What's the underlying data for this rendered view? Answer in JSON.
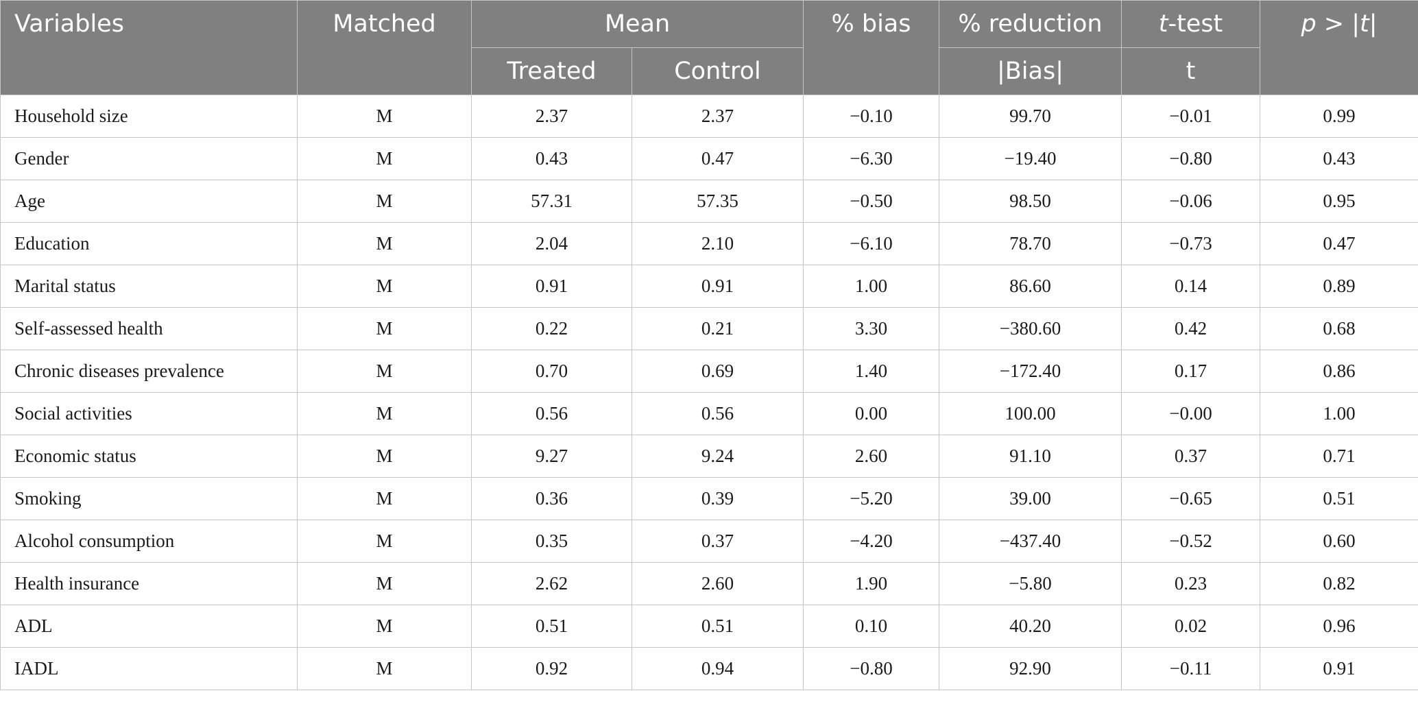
{
  "header": {
    "variables": "Variables",
    "matched": "Matched",
    "mean": "Mean",
    "treated": "Treated",
    "control": "Control",
    "bias": "% bias",
    "reduction": "% reduction",
    "abs_bias": "|Bias|",
    "ttest_t": "t",
    "ttest_rest": "-test",
    "t": "t",
    "p_p": "p",
    "p_mid": " > |",
    "p_t": "t",
    "p_end": "|"
  },
  "rows": [
    {
      "variable": "Household size",
      "matched": "M",
      "treated": "2.37",
      "control": "2.37",
      "bias": "−0.10",
      "reduction": "99.70",
      "t": "−0.01",
      "p": "0.99"
    },
    {
      "variable": "Gender",
      "matched": "M",
      "treated": "0.43",
      "control": "0.47",
      "bias": "−6.30",
      "reduction": "−19.40",
      "t": "−0.80",
      "p": "0.43"
    },
    {
      "variable": "Age",
      "matched": "M",
      "treated": "57.31",
      "control": "57.35",
      "bias": "−0.50",
      "reduction": "98.50",
      "t": "−0.06",
      "p": "0.95"
    },
    {
      "variable": "Education",
      "matched": "M",
      "treated": "2.04",
      "control": "2.10",
      "bias": "−6.10",
      "reduction": "78.70",
      "t": "−0.73",
      "p": "0.47"
    },
    {
      "variable": "Marital status",
      "matched": "M",
      "treated": "0.91",
      "control": "0.91",
      "bias": "1.00",
      "reduction": "86.60",
      "t": "0.14",
      "p": "0.89"
    },
    {
      "variable": "Self-assessed health",
      "matched": "M",
      "treated": "0.22",
      "control": "0.21",
      "bias": "3.30",
      "reduction": "−380.60",
      "t": "0.42",
      "p": "0.68"
    },
    {
      "variable": "Chronic diseases prevalence",
      "matched": "M",
      "treated": "0.70",
      "control": "0.69",
      "bias": "1.40",
      "reduction": "−172.40",
      "t": "0.17",
      "p": "0.86"
    },
    {
      "variable": "Social activities",
      "matched": "M",
      "treated": "0.56",
      "control": "0.56",
      "bias": "0.00",
      "reduction": "100.00",
      "t": "−0.00",
      "p": "1.00"
    },
    {
      "variable": "Economic status",
      "matched": "M",
      "treated": "9.27",
      "control": "9.24",
      "bias": "2.60",
      "reduction": "91.10",
      "t": "0.37",
      "p": "0.71"
    },
    {
      "variable": "Smoking",
      "matched": "M",
      "treated": "0.36",
      "control": "0.39",
      "bias": "−5.20",
      "reduction": "39.00",
      "t": "−0.65",
      "p": "0.51"
    },
    {
      "variable": "Alcohol consumption",
      "matched": "M",
      "treated": "0.35",
      "control": "0.37",
      "bias": "−4.20",
      "reduction": "−437.40",
      "t": "−0.52",
      "p": "0.60"
    },
    {
      "variable": "Health insurance",
      "matched": "M",
      "treated": "2.62",
      "control": "2.60",
      "bias": "1.90",
      "reduction": "−5.80",
      "t": "0.23",
      "p": "0.82"
    },
    {
      "variable": "ADL",
      "matched": "M",
      "treated": "0.51",
      "control": "0.51",
      "bias": "0.10",
      "reduction": "40.20",
      "t": "0.02",
      "p": "0.96"
    },
    {
      "variable": "IADL",
      "matched": "M",
      "treated": "0.92",
      "control": "0.94",
      "bias": "−0.80",
      "reduction": "92.90",
      "t": "−0.11",
      "p": "0.91"
    }
  ]
}
